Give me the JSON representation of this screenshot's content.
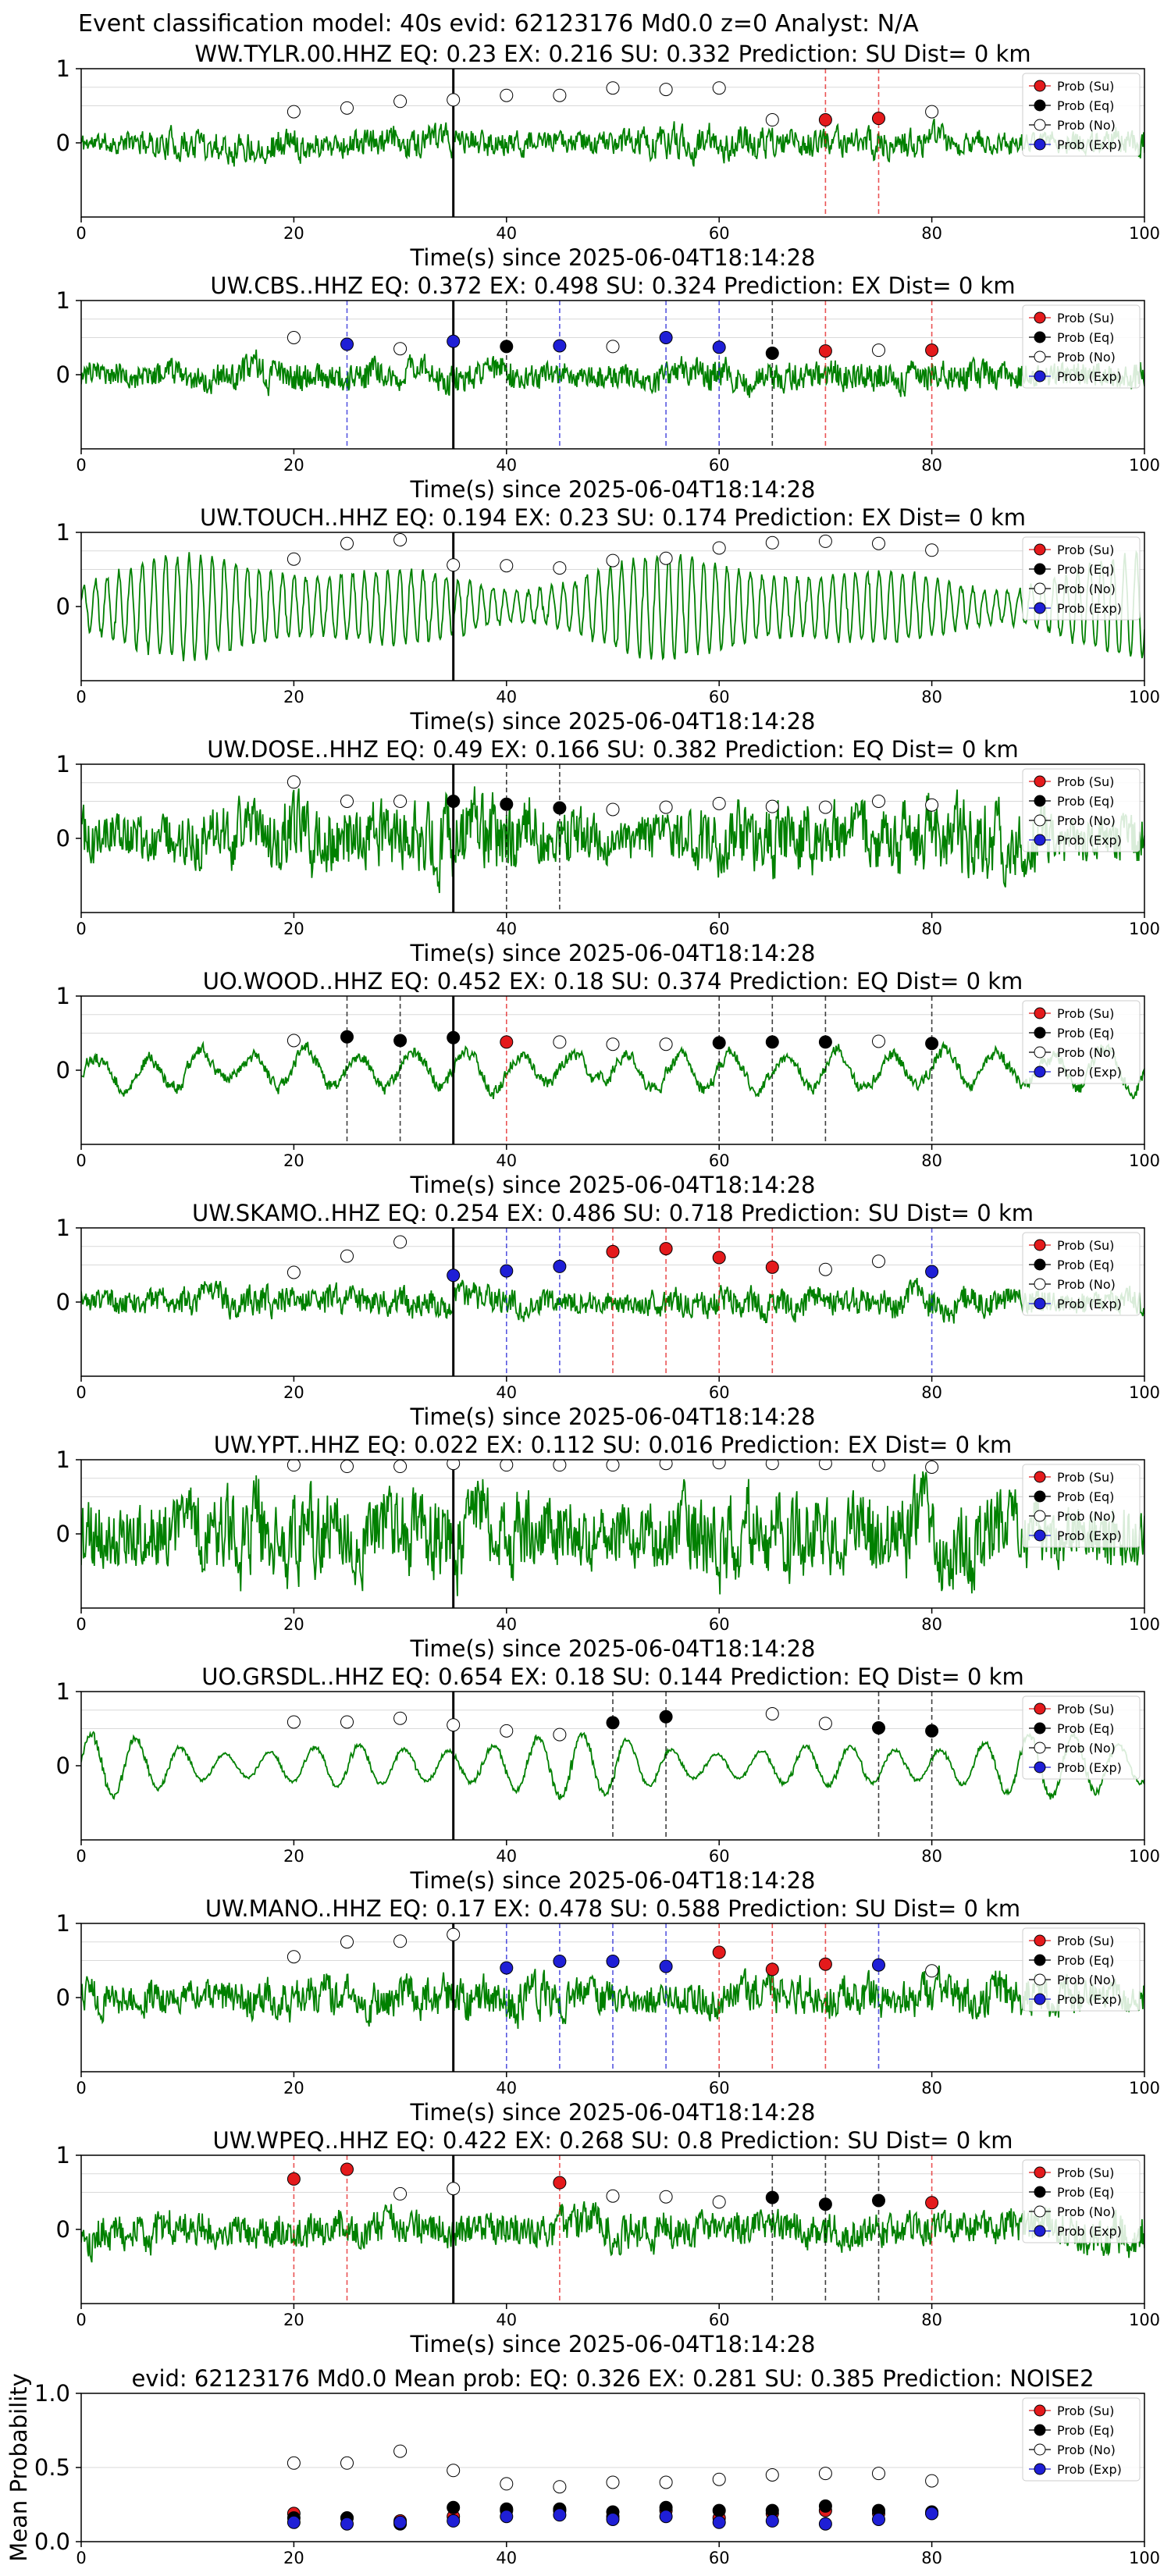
{
  "figure": {
    "suptitle": "Event classification model: 40s evid: 62123176 Md0.0 z=0 Analyst: N/A"
  },
  "colors": {
    "wave": "#008000",
    "su": "#e41a1c",
    "eq": "#000000",
    "exp": "#1f1fd6",
    "noise_face": "#ffffff",
    "pick_line": "#000000",
    "grid": "#d9d9d9"
  },
  "legend": {
    "position": "top-right",
    "entries": [
      "Prob (Su)",
      "Prob (Eq)",
      "Prob (No)",
      "Prob (Exp)"
    ]
  },
  "chart_data": [
    {
      "type": "line+scatter",
      "station": "WW.TYLR.00.HHZ",
      "title": "WW.TYLR.00.HHZ   EQ: 0.23   EX: 0.216   SU: 0.332   Prediction: SU    Dist= 0 km",
      "xlabel": "Time(s) since 2025-06-04T18:14:28",
      "xlim": [
        0,
        100
      ],
      "ylim": [
        -1,
        1
      ],
      "xticks": [
        0,
        20,
        40,
        60,
        80,
        100
      ],
      "yticks": [
        0,
        1
      ],
      "pick_time": 35,
      "waveform": {
        "character": "broadband noise",
        "period_s": 1.2,
        "amplitude": 0.18,
        "seed": 11
      },
      "windows": [
        {
          "t": 20,
          "cls": "No",
          "p": 0.42
        },
        {
          "t": 25,
          "cls": "No",
          "p": 0.47
        },
        {
          "t": 30,
          "cls": "No",
          "p": 0.56
        },
        {
          "t": 35,
          "cls": "No",
          "p": 0.58
        },
        {
          "t": 40,
          "cls": "No",
          "p": 0.64
        },
        {
          "t": 45,
          "cls": "No",
          "p": 0.64
        },
        {
          "t": 50,
          "cls": "No",
          "p": 0.74
        },
        {
          "t": 55,
          "cls": "No",
          "p": 0.72
        },
        {
          "t": 60,
          "cls": "No",
          "p": 0.74
        },
        {
          "t": 65,
          "cls": "No",
          "p": 0.31
        },
        {
          "t": 70,
          "cls": "Su",
          "p": 0.31
        },
        {
          "t": 75,
          "cls": "Su",
          "p": 0.33
        },
        {
          "t": 80,
          "cls": "No",
          "p": 0.42
        }
      ]
    },
    {
      "type": "line+scatter",
      "station": "UW.CBS..HHZ",
      "title": "UW.CBS..HHZ   EQ: 0.372  EX: 0.498  SU: 0.324   Prediction: EX    Dist= 0 km",
      "xlabel": "Time(s) since 2025-06-04T18:14:28",
      "xlim": [
        0,
        100
      ],
      "ylim": [
        -1,
        1
      ],
      "xticks": [
        0,
        20,
        40,
        60,
        80,
        100
      ],
      "yticks": [
        0,
        1
      ],
      "pick_time": 35,
      "waveform": {
        "character": "broadband noise",
        "period_s": 3.0,
        "amplitude": 0.25,
        "seed": 23
      },
      "windows": [
        {
          "t": 20,
          "cls": "No",
          "p": 0.5
        },
        {
          "t": 25,
          "cls": "Exp",
          "p": 0.41
        },
        {
          "t": 30,
          "cls": "No",
          "p": 0.35
        },
        {
          "t": 35,
          "cls": "Exp",
          "p": 0.45
        },
        {
          "t": 40,
          "cls": "Eq",
          "p": 0.38
        },
        {
          "t": 45,
          "cls": "Exp",
          "p": 0.39
        },
        {
          "t": 50,
          "cls": "No",
          "p": 0.38
        },
        {
          "t": 55,
          "cls": "Exp",
          "p": 0.5
        },
        {
          "t": 60,
          "cls": "Exp",
          "p": 0.37
        },
        {
          "t": 65,
          "cls": "Eq",
          "p": 0.29
        },
        {
          "t": 70,
          "cls": "Su",
          "p": 0.32
        },
        {
          "t": 75,
          "cls": "No",
          "p": 0.33
        },
        {
          "t": 80,
          "cls": "Su",
          "p": 0.33
        }
      ]
    },
    {
      "type": "line+scatter",
      "station": "UW.TOUCH..HHZ",
      "title": "UW.TOUCH..HHZ   EQ: 0.194  EX: 0.23  SU: 0.174   Prediction: EX    Dist= 0 km",
      "xlabel": "Time(s) since 2025-06-04T18:14:28",
      "xlim": [
        0,
        100
      ],
      "ylim": [
        -1,
        1
      ],
      "xticks": [
        0,
        20,
        40,
        60,
        80,
        100
      ],
      "yticks": [
        0,
        1
      ],
      "pick_time": 35,
      "waveform": {
        "character": "tonal, modulated",
        "period_s": 1.1,
        "amplitude": 0.6,
        "seed": 37
      },
      "windows": [
        {
          "t": 20,
          "cls": "No",
          "p": 0.64
        },
        {
          "t": 25,
          "cls": "No",
          "p": 0.85
        },
        {
          "t": 30,
          "cls": "No",
          "p": 0.9
        },
        {
          "t": 35,
          "cls": "No",
          "p": 0.56
        },
        {
          "t": 40,
          "cls": "No",
          "p": 0.55
        },
        {
          "t": 45,
          "cls": "No",
          "p": 0.52
        },
        {
          "t": 50,
          "cls": "No",
          "p": 0.62
        },
        {
          "t": 55,
          "cls": "No",
          "p": 0.65
        },
        {
          "t": 60,
          "cls": "No",
          "p": 0.79
        },
        {
          "t": 65,
          "cls": "No",
          "p": 0.86
        },
        {
          "t": 70,
          "cls": "No",
          "p": 0.88
        },
        {
          "t": 75,
          "cls": "No",
          "p": 0.85
        },
        {
          "t": 80,
          "cls": "No",
          "p": 0.76
        }
      ]
    },
    {
      "type": "line+scatter",
      "station": "UW.DOSE..HHZ",
      "title": "UW.DOSE..HHZ   EQ: 0.49  EX: 0.166  SU: 0.382   Prediction: EQ    Dist= 0 km",
      "xlabel": "Time(s) since 2025-06-04T18:14:28",
      "xlim": [
        0,
        100
      ],
      "ylim": [
        -1,
        1
      ],
      "xticks": [
        0,
        20,
        40,
        60,
        80,
        100
      ],
      "yticks": [
        0,
        1
      ],
      "pick_time": 35,
      "waveform": {
        "character": "broadband noise",
        "period_s": 0.8,
        "amplitude": 0.35,
        "seed": 41
      },
      "windows": [
        {
          "t": 20,
          "cls": "No",
          "p": 0.76
        },
        {
          "t": 25,
          "cls": "No",
          "p": 0.5
        },
        {
          "t": 30,
          "cls": "No",
          "p": 0.5
        },
        {
          "t": 35,
          "cls": "Eq",
          "p": 0.5
        },
        {
          "t": 40,
          "cls": "Eq",
          "p": 0.46
        },
        {
          "t": 45,
          "cls": "Eq",
          "p": 0.41
        },
        {
          "t": 50,
          "cls": "No",
          "p": 0.39
        },
        {
          "t": 55,
          "cls": "No",
          "p": 0.42
        },
        {
          "t": 60,
          "cls": "No",
          "p": 0.47
        },
        {
          "t": 65,
          "cls": "No",
          "p": 0.43
        },
        {
          "t": 70,
          "cls": "No",
          "p": 0.42
        },
        {
          "t": 75,
          "cls": "No",
          "p": 0.5
        },
        {
          "t": 80,
          "cls": "No",
          "p": 0.45
        }
      ]
    },
    {
      "type": "line+scatter",
      "station": "UO.WOOD..HHZ",
      "title": "UO.WOOD..HHZ   EQ: 0.452  EX: 0.18  SU: 0.374   Prediction: EQ    Dist= 0 km",
      "xlabel": "Time(s) since 2025-06-04T18:14:28",
      "xlim": [
        0,
        100
      ],
      "ylim": [
        -1,
        1
      ],
      "xticks": [
        0,
        20,
        40,
        60,
        80,
        100
      ],
      "yticks": [
        0,
        1
      ],
      "pick_time": 35,
      "waveform": {
        "character": "long-period",
        "period_s": 5.0,
        "amplitude": 0.32,
        "seed": 53
      },
      "windows": [
        {
          "t": 20,
          "cls": "No",
          "p": 0.4
        },
        {
          "t": 25,
          "cls": "Eq",
          "p": 0.45
        },
        {
          "t": 30,
          "cls": "Eq",
          "p": 0.4
        },
        {
          "t": 35,
          "cls": "Eq",
          "p": 0.44
        },
        {
          "t": 40,
          "cls": "Su",
          "p": 0.38
        },
        {
          "t": 45,
          "cls": "No",
          "p": 0.38
        },
        {
          "t": 50,
          "cls": "No",
          "p": 0.35
        },
        {
          "t": 55,
          "cls": "No",
          "p": 0.35
        },
        {
          "t": 60,
          "cls": "Eq",
          "p": 0.37
        },
        {
          "t": 65,
          "cls": "Eq",
          "p": 0.38
        },
        {
          "t": 70,
          "cls": "Eq",
          "p": 0.38
        },
        {
          "t": 75,
          "cls": "No",
          "p": 0.39
        },
        {
          "t": 80,
          "cls": "Eq",
          "p": 0.36
        }
      ]
    },
    {
      "type": "line+scatter",
      "station": "UW.SKAMO..HHZ",
      "title": "UW.SKAMO..HHZ   EQ: 0.254  EX: 0.486  SU: 0.718   Prediction: SU    Dist= 0 km",
      "xlabel": "Time(s) since 2025-06-04T18:14:28",
      "xlim": [
        0,
        100
      ],
      "ylim": [
        -1,
        1
      ],
      "xticks": [
        0,
        20,
        40,
        60,
        80,
        100
      ],
      "yticks": [
        0,
        1
      ],
      "pick_time": 35,
      "waveform": {
        "character": "mixed",
        "period_s": 2.0,
        "amplitude": 0.22,
        "seed": 67
      },
      "windows": [
        {
          "t": 20,
          "cls": "No",
          "p": 0.4
        },
        {
          "t": 25,
          "cls": "No",
          "p": 0.62
        },
        {
          "t": 30,
          "cls": "No",
          "p": 0.81
        },
        {
          "t": 35,
          "cls": "Exp",
          "p": 0.36
        },
        {
          "t": 40,
          "cls": "Exp",
          "p": 0.42
        },
        {
          "t": 45,
          "cls": "Exp",
          "p": 0.48
        },
        {
          "t": 50,
          "cls": "Su",
          "p": 0.68
        },
        {
          "t": 55,
          "cls": "Su",
          "p": 0.72
        },
        {
          "t": 60,
          "cls": "Su",
          "p": 0.6
        },
        {
          "t": 65,
          "cls": "Su",
          "p": 0.47
        },
        {
          "t": 70,
          "cls": "No",
          "p": 0.44
        },
        {
          "t": 75,
          "cls": "No",
          "p": 0.55
        },
        {
          "t": 80,
          "cls": "Exp",
          "p": 0.41
        }
      ]
    },
    {
      "type": "line+scatter",
      "station": "UW.YPT..HHZ",
      "title": "UW.YPT..HHZ   EQ: 0.022  EX: 0.112  SU: 0.016   Prediction: EX    Dist= 0 km",
      "xlabel": "Time(s) since 2025-06-04T18:14:28",
      "xlim": [
        0,
        100
      ],
      "ylim": [
        -1,
        1
      ],
      "xticks": [
        0,
        20,
        40,
        60,
        80,
        100
      ],
      "yticks": [
        0,
        1
      ],
      "pick_time": 35,
      "waveform": {
        "character": "high amplitude noise",
        "period_s": 1.4,
        "amplitude": 0.55,
        "seed": 79
      },
      "windows": [
        {
          "t": 20,
          "cls": "No",
          "p": 0.93
        },
        {
          "t": 25,
          "cls": "No",
          "p": 0.91
        },
        {
          "t": 30,
          "cls": "No",
          "p": 0.91
        },
        {
          "t": 35,
          "cls": "No",
          "p": 0.95
        },
        {
          "t": 40,
          "cls": "No",
          "p": 0.93
        },
        {
          "t": 45,
          "cls": "No",
          "p": 0.93
        },
        {
          "t": 50,
          "cls": "No",
          "p": 0.93
        },
        {
          "t": 55,
          "cls": "No",
          "p": 0.95
        },
        {
          "t": 60,
          "cls": "No",
          "p": 0.96
        },
        {
          "t": 65,
          "cls": "No",
          "p": 0.95
        },
        {
          "t": 70,
          "cls": "No",
          "p": 0.95
        },
        {
          "t": 75,
          "cls": "No",
          "p": 0.93
        },
        {
          "t": 80,
          "cls": "No",
          "p": 0.9
        }
      ]
    },
    {
      "type": "line+scatter",
      "station": "UO.GRSDL..HHZ",
      "title": "UO.GRSDL..HHZ   EQ: 0.654  EX: 0.18  SU: 0.144   Prediction: EQ    Dist= 0 km",
      "xlabel": "Time(s) since 2025-06-04T18:14:28",
      "xlim": [
        0,
        100
      ],
      "ylim": [
        -1,
        1
      ],
      "xticks": [
        0,
        20,
        40,
        60,
        80,
        100
      ],
      "yticks": [
        0,
        1
      ],
      "pick_time": 35,
      "waveform": {
        "character": "smooth sinusoidal",
        "period_s": 4.2,
        "amplitude": 0.42,
        "seed": 83
      },
      "windows": [
        {
          "t": 20,
          "cls": "No",
          "p": 0.59
        },
        {
          "t": 25,
          "cls": "No",
          "p": 0.59
        },
        {
          "t": 30,
          "cls": "No",
          "p": 0.64
        },
        {
          "t": 35,
          "cls": "No",
          "p": 0.55
        },
        {
          "t": 40,
          "cls": "No",
          "p": 0.47
        },
        {
          "t": 45,
          "cls": "No",
          "p": 0.42
        },
        {
          "t": 50,
          "cls": "Eq",
          "p": 0.58
        },
        {
          "t": 55,
          "cls": "Eq",
          "p": 0.66
        },
        {
          "t": 65,
          "cls": "No",
          "p": 0.7
        },
        {
          "t": 70,
          "cls": "No",
          "p": 0.57
        },
        {
          "t": 75,
          "cls": "Eq",
          "p": 0.51
        },
        {
          "t": 80,
          "cls": "Eq",
          "p": 0.47
        }
      ]
    },
    {
      "type": "line+scatter",
      "station": "UW.MANO..HHZ",
      "title": "UW.MANO..HHZ   EQ: 0.17  EX: 0.478  SU: 0.588   Prediction: SU    Dist= 0 km",
      "xlabel": "Time(s) since 2025-06-04T18:14:28",
      "xlim": [
        0,
        100
      ],
      "ylim": [
        -1,
        1
      ],
      "xticks": [
        0,
        20,
        40,
        60,
        80,
        100
      ],
      "yticks": [
        0,
        1
      ],
      "pick_time": 35,
      "waveform": {
        "character": "broadband noise",
        "period_s": 1.6,
        "amplitude": 0.28,
        "seed": 97
      },
      "windows": [
        {
          "t": 20,
          "cls": "No",
          "p": 0.55
        },
        {
          "t": 25,
          "cls": "No",
          "p": 0.75
        },
        {
          "t": 30,
          "cls": "No",
          "p": 0.76
        },
        {
          "t": 35,
          "cls": "No",
          "p": 0.85
        },
        {
          "t": 40,
          "cls": "Exp",
          "p": 0.4
        },
        {
          "t": 45,
          "cls": "Exp",
          "p": 0.49
        },
        {
          "t": 50,
          "cls": "Exp",
          "p": 0.49
        },
        {
          "t": 55,
          "cls": "Exp",
          "p": 0.42
        },
        {
          "t": 60,
          "cls": "Su",
          "p": 0.61
        },
        {
          "t": 65,
          "cls": "Su",
          "p": 0.38
        },
        {
          "t": 70,
          "cls": "Su",
          "p": 0.45
        },
        {
          "t": 75,
          "cls": "Exp",
          "p": 0.44
        },
        {
          "t": 80,
          "cls": "No",
          "p": 0.36
        }
      ]
    },
    {
      "type": "line+scatter",
      "station": "UW.WPEQ..HHZ",
      "title": "UW.WPEQ..HHZ   EQ: 0.422  EX: 0.268  SU: 0.8   Prediction: SU    Dist= 0 km",
      "xlabel": "Time(s) since 2025-06-04T18:14:28",
      "xlim": [
        0,
        100
      ],
      "ylim": [
        -1,
        1
      ],
      "xticks": [
        0,
        20,
        40,
        60,
        80,
        100
      ],
      "yticks": [
        0,
        1
      ],
      "pick_time": 35,
      "waveform": {
        "character": "mixed",
        "period_s": 2.4,
        "amplitude": 0.3,
        "seed": 101
      },
      "windows": [
        {
          "t": 20,
          "cls": "Su",
          "p": 0.68
        },
        {
          "t": 25,
          "cls": "Su",
          "p": 0.81
        },
        {
          "t": 30,
          "cls": "No",
          "p": 0.48
        },
        {
          "t": 35,
          "cls": "No",
          "p": 0.55
        },
        {
          "t": 45,
          "cls": "Su",
          "p": 0.63
        },
        {
          "t": 50,
          "cls": "No",
          "p": 0.45
        },
        {
          "t": 55,
          "cls": "No",
          "p": 0.44
        },
        {
          "t": 60,
          "cls": "No",
          "p": 0.37
        },
        {
          "t": 65,
          "cls": "Eq",
          "p": 0.43
        },
        {
          "t": 70,
          "cls": "Eq",
          "p": 0.34
        },
        {
          "t": 75,
          "cls": "Eq",
          "p": 0.39
        },
        {
          "t": 80,
          "cls": "Su",
          "p": 0.36
        }
      ]
    },
    {
      "type": "scatter",
      "title": "evid: 62123176  Md0.0   Mean prob:   EQ: 0.326  EX: 0.281  SU: 0.385   Prediction: NOISE2",
      "ylabel": "Mean Probability",
      "xlim": [
        0,
        100
      ],
      "ylim": [
        0,
        1.0
      ],
      "xticks": [
        0,
        20,
        40,
        60,
        80,
        100
      ],
      "yticks": [
        0.0,
        0.5,
        1.0
      ],
      "ytick_labels": [
        "0.0",
        "0.5",
        "1.0"
      ],
      "grid": true,
      "x": [
        20,
        25,
        30,
        35,
        40,
        45,
        50,
        55,
        60,
        65,
        70,
        75,
        80
      ],
      "series": [
        {
          "name": "Prob (Su)",
          "key": "Su",
          "values": [
            0.19,
            0.16,
            0.14,
            0.17,
            0.21,
            0.21,
            0.17,
            0.21,
            0.16,
            0.19,
            0.21,
            0.19,
            0.19
          ]
        },
        {
          "name": "Prob (Eq)",
          "key": "Eq",
          "values": [
            0.16,
            0.16,
            0.12,
            0.23,
            0.22,
            0.22,
            0.2,
            0.23,
            0.21,
            0.21,
            0.24,
            0.21,
            0.2
          ]
        },
        {
          "name": "Prob (No)",
          "key": "No",
          "values": [
            0.53,
            0.53,
            0.61,
            0.48,
            0.39,
            0.37,
            0.4,
            0.4,
            0.42,
            0.45,
            0.46,
            0.46,
            0.41
          ]
        },
        {
          "name": "Prob (Exp)",
          "key": "Exp",
          "values": [
            0.13,
            0.12,
            0.13,
            0.14,
            0.17,
            0.18,
            0.15,
            0.17,
            0.13,
            0.14,
            0.12,
            0.15,
            0.19
          ]
        }
      ]
    }
  ]
}
